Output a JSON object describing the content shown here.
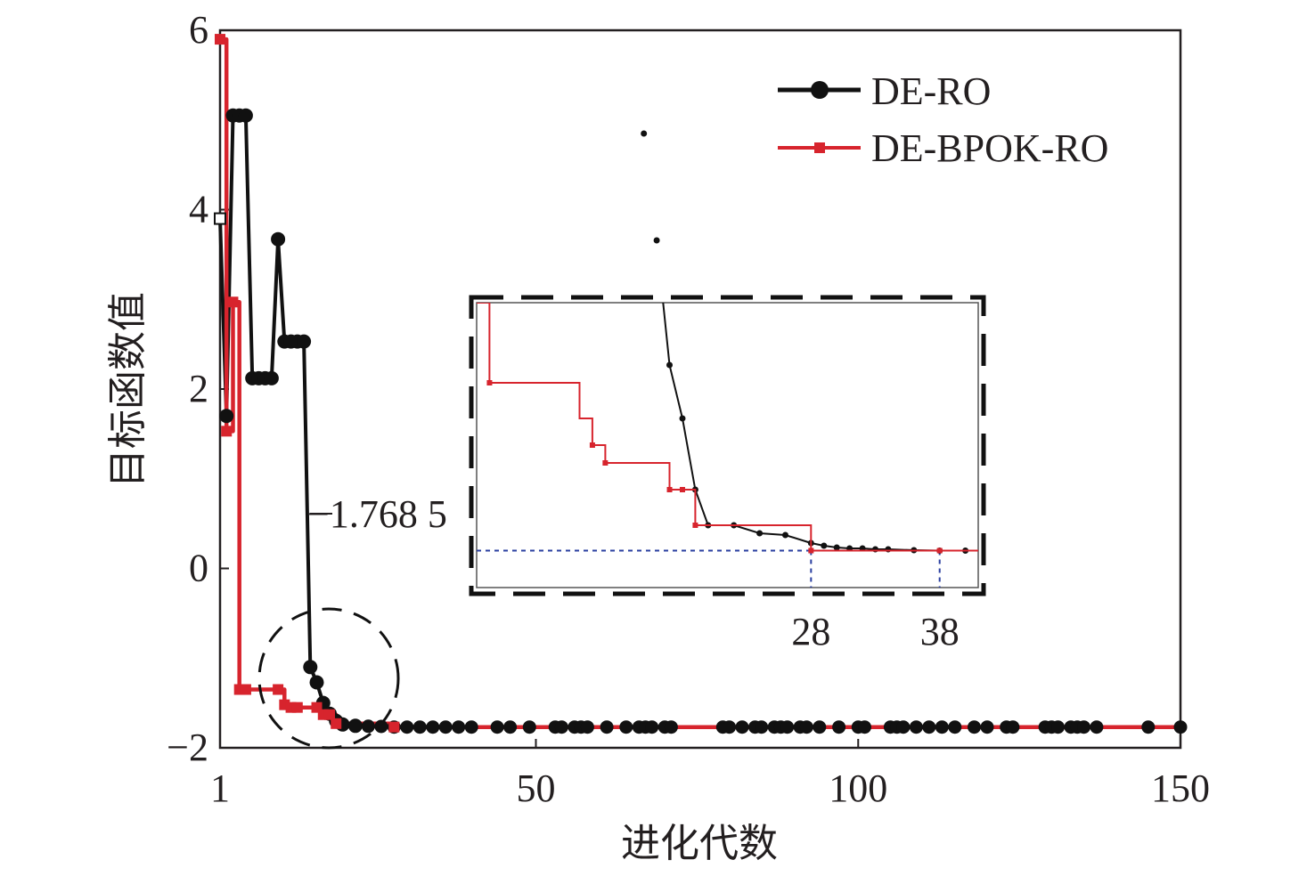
{
  "chart_data": {
    "type": "line",
    "xlabel": "进化代数",
    "ylabel": "目标函数值",
    "xlim": [
      1,
      150
    ],
    "ylim": [
      -2,
      6
    ],
    "x_ticks": [
      "1",
      "50",
      "100",
      "150"
    ],
    "y_ticks": [
      "−2",
      "0",
      "2",
      "4",
      "6"
    ],
    "legend": {
      "placement": "top-right",
      "entries": [
        "DE-RO",
        "DE-BPOK-RO"
      ]
    },
    "annotation": "−1.768 5",
    "colors": {
      "de_ro": "#111111",
      "de_bpok_ro": "#d7242d",
      "guide": "#2a3fa0",
      "axis": "#231f20"
    },
    "series": [
      {
        "name": "DE-RO",
        "marker": "circle",
        "x": [
          1,
          2,
          3,
          4,
          5,
          6,
          7,
          8,
          9,
          10,
          11,
          12,
          13,
          14,
          15,
          16,
          17,
          18,
          19,
          20,
          22,
          24,
          26,
          28,
          30,
          32,
          34,
          36,
          38,
          40,
          44,
          46,
          49,
          53,
          54,
          56,
          57,
          58,
          61,
          64,
          66,
          67,
          68,
          70,
          71,
          79,
          80,
          82,
          84,
          85,
          87,
          88,
          89,
          91,
          92,
          94,
          97,
          100,
          101,
          105,
          106,
          107,
          109,
          111,
          113,
          115,
          118,
          120,
          123,
          124,
          129,
          130,
          131,
          133,
          134,
          135,
          137,
          145,
          150
        ],
        "y": [
          3.9,
          1.7,
          5.05,
          5.05,
          5.05,
          2.12,
          2.12,
          2.12,
          2.12,
          3.67,
          2.53,
          2.53,
          2.53,
          2.53,
          -1.1,
          -1.27,
          -1.5,
          -1.62,
          -1.7,
          -1.74,
          -1.755,
          -1.76,
          -1.762,
          -1.7685,
          -1.7685,
          -1.7685,
          -1.7685,
          -1.7685,
          -1.7685,
          -1.7685,
          -1.7685,
          -1.7685,
          -1.7685,
          -1.7685,
          -1.7685,
          -1.7685,
          -1.7685,
          -1.7685,
          -1.7685,
          -1.7685,
          -1.7685,
          -1.7685,
          -1.7685,
          -1.7685,
          -1.7685,
          -1.7685,
          -1.7685,
          -1.7685,
          -1.7685,
          -1.7685,
          -1.7685,
          -1.7685,
          -1.7685,
          -1.7685,
          -1.7685,
          -1.7685,
          -1.7685,
          -1.7685,
          -1.7685,
          -1.7685,
          -1.7685,
          -1.7685,
          -1.7685,
          -1.7685,
          -1.7685,
          -1.7685,
          -1.7685,
          -1.7685,
          -1.7685,
          -1.7685,
          -1.7685,
          -1.7685,
          -1.7685,
          -1.7685,
          -1.7685,
          -1.7685,
          -1.7685,
          -1.7685,
          -1.7685
        ]
      },
      {
        "name": "DE-BPOK-RO",
        "marker": "square",
        "x": [
          1,
          2,
          3,
          4,
          5,
          10,
          11,
          12,
          13,
          16,
          17,
          18,
          19,
          28,
          38,
          150
        ],
        "y": [
          5.9,
          1.53,
          2.97,
          -1.35,
          -1.35,
          -1.35,
          -1.52,
          -1.55,
          -1.55,
          -1.55,
          -1.63,
          -1.63,
          -1.73,
          -1.7685,
          -1.7685,
          -1.7685
        ]
      }
    ],
    "inset": {
      "x_ticks": [
        "28",
        "38"
      ],
      "marked_x": [
        28,
        38
      ],
      "ylim": [
        -1.81,
        -1.49
      ],
      "xlim": [
        2,
        41
      ]
    }
  }
}
